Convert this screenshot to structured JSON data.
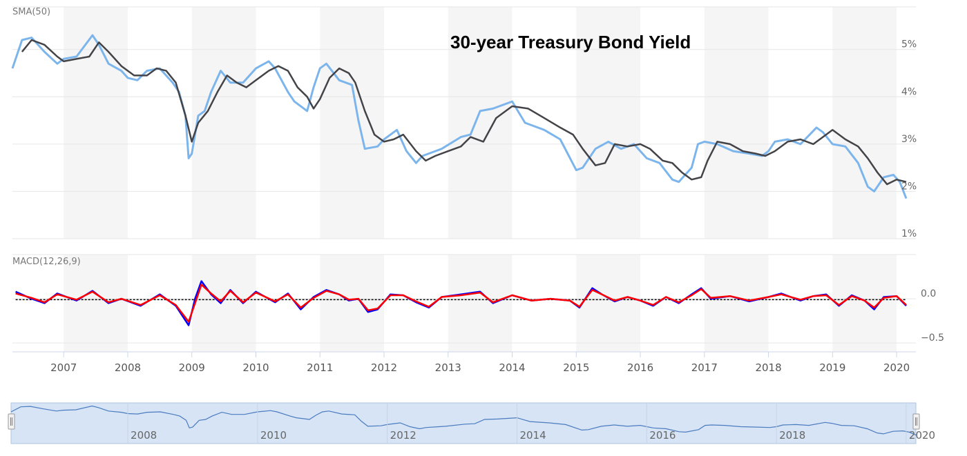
{
  "chart_data": {
    "title": "30-year Treasury Bond Yield",
    "type": "line",
    "price_panel": {
      "label": "SMA(50)",
      "y_ticks": [
        "5%",
        "4%",
        "3%",
        "2%",
        "1%"
      ],
      "y_tick_values": [
        5,
        4,
        3,
        2,
        1
      ],
      "ylim": [
        1,
        5.9
      ],
      "series": [
        {
          "role": "yield",
          "color": "#7cb5ec",
          "x": [
            2006.2,
            2006.35,
            2006.5,
            2006.7,
            2006.9,
            2007.0,
            2007.2,
            2007.45,
            2007.55,
            2007.7,
            2007.9,
            2008.0,
            2008.15,
            2008.3,
            2008.5,
            2008.7,
            2008.8,
            2008.9,
            2008.95,
            2009.0,
            2009.1,
            2009.2,
            2009.3,
            2009.45,
            2009.6,
            2009.8,
            2010.0,
            2010.2,
            2010.3,
            2010.5,
            2010.6,
            2010.8,
            2010.9,
            2011.0,
            2011.1,
            2011.3,
            2011.5,
            2011.6,
            2011.7,
            2011.9,
            2012.0,
            2012.2,
            2012.35,
            2012.5,
            2012.6,
            2012.8,
            2012.9,
            2013.2,
            2013.35,
            2013.5,
            2013.7,
            2014.0,
            2014.2,
            2014.5,
            2014.75,
            2015.0,
            2015.1,
            2015.3,
            2015.5,
            2015.7,
            2015.9,
            2016.1,
            2016.3,
            2016.5,
            2016.6,
            2016.8,
            2016.9,
            2017.0,
            2017.2,
            2017.45,
            2017.7,
            2017.9,
            2018.0,
            2018.1,
            2018.3,
            2018.5,
            2018.75,
            2018.85,
            2019.0,
            2019.2,
            2019.4,
            2019.55,
            2019.65,
            2019.8,
            2019.95,
            2020.05,
            2020.15
          ],
          "y": [
            4.6,
            5.2,
            5.25,
            4.95,
            4.7,
            4.8,
            4.85,
            5.3,
            5.1,
            4.7,
            4.55,
            4.4,
            4.35,
            4.55,
            4.6,
            4.3,
            4.1,
            3.6,
            2.7,
            2.8,
            3.6,
            3.7,
            4.1,
            4.55,
            4.3,
            4.3,
            4.6,
            4.75,
            4.6,
            4.1,
            3.9,
            3.7,
            4.2,
            4.6,
            4.7,
            4.35,
            4.25,
            3.5,
            2.9,
            2.95,
            3.1,
            3.3,
            2.85,
            2.6,
            2.75,
            2.85,
            2.9,
            3.15,
            3.2,
            3.7,
            3.75,
            3.9,
            3.45,
            3.3,
            3.1,
            2.45,
            2.5,
            2.9,
            3.05,
            2.9,
            3.0,
            2.7,
            2.6,
            2.25,
            2.2,
            2.5,
            3.0,
            3.05,
            3.0,
            2.85,
            2.8,
            2.75,
            2.85,
            3.05,
            3.1,
            3.0,
            3.35,
            3.25,
            3.0,
            2.95,
            2.6,
            2.1,
            2.0,
            2.3,
            2.35,
            2.2,
            1.85
          ]
        },
        {
          "role": "SMA(50)",
          "color": "#434348",
          "x": [
            2006.35,
            2006.5,
            2006.7,
            2006.9,
            2007.0,
            2007.2,
            2007.4,
            2007.55,
            2007.7,
            2007.9,
            2008.1,
            2008.3,
            2008.45,
            2008.6,
            2008.75,
            2008.9,
            2009.0,
            2009.1,
            2009.25,
            2009.4,
            2009.55,
            2009.7,
            2009.85,
            2010.0,
            2010.2,
            2010.35,
            2010.5,
            2010.65,
            2010.8,
            2010.9,
            2011.0,
            2011.15,
            2011.3,
            2011.45,
            2011.55,
            2011.7,
            2011.85,
            2012.0,
            2012.15,
            2012.3,
            2012.5,
            2012.65,
            2012.8,
            2013.0,
            2013.2,
            2013.35,
            2013.55,
            2013.75,
            2014.0,
            2014.25,
            2014.5,
            2014.75,
            2014.95,
            2015.1,
            2015.3,
            2015.45,
            2015.6,
            2015.8,
            2016.0,
            2016.15,
            2016.35,
            2016.5,
            2016.65,
            2016.8,
            2016.95,
            2017.05,
            2017.2,
            2017.4,
            2017.6,
            2017.8,
            2017.95,
            2018.1,
            2018.3,
            2018.5,
            2018.7,
            2018.85,
            2019.0,
            2019.2,
            2019.4,
            2019.55,
            2019.7,
            2019.85,
            2020.0,
            2020.15
          ],
          "y": [
            4.95,
            5.2,
            5.1,
            4.85,
            4.75,
            4.8,
            4.85,
            5.15,
            4.95,
            4.65,
            4.45,
            4.45,
            4.6,
            4.55,
            4.3,
            3.6,
            3.05,
            3.45,
            3.7,
            4.1,
            4.45,
            4.3,
            4.2,
            4.35,
            4.55,
            4.65,
            4.55,
            4.2,
            4.0,
            3.75,
            3.95,
            4.4,
            4.6,
            4.5,
            4.3,
            3.7,
            3.2,
            3.05,
            3.1,
            3.2,
            2.85,
            2.65,
            2.75,
            2.85,
            2.95,
            3.15,
            3.05,
            3.55,
            3.8,
            3.75,
            3.55,
            3.35,
            3.2,
            2.9,
            2.55,
            2.6,
            3.0,
            2.95,
            3.0,
            2.9,
            2.65,
            2.6,
            2.4,
            2.25,
            2.3,
            2.65,
            3.05,
            3.0,
            2.85,
            2.8,
            2.75,
            2.85,
            3.05,
            3.1,
            3.0,
            3.15,
            3.3,
            3.1,
            2.95,
            2.7,
            2.4,
            2.15,
            2.25,
            2.2
          ]
        }
      ]
    },
    "macd_panel": {
      "label": "MACD(12,26,9)",
      "y_ticks": [
        "0.0",
        "−0.5"
      ],
      "y_tick_values": [
        0.0,
        -0.5
      ],
      "ylim": [
        -0.6,
        0.5
      ],
      "series": [
        {
          "role": "MACD",
          "color": "#0000ff",
          "x": [
            2006.25,
            2006.5,
            2006.7,
            2006.9,
            2007.2,
            2007.45,
            2007.7,
            2007.9,
            2008.2,
            2008.5,
            2008.75,
            2008.95,
            2009.05,
            2009.15,
            2009.3,
            2009.45,
            2009.6,
            2009.8,
            2010.0,
            2010.3,
            2010.5,
            2010.7,
            2010.9,
            2011.1,
            2011.3,
            2011.45,
            2011.6,
            2011.75,
            2011.9,
            2012.1,
            2012.3,
            2012.5,
            2012.7,
            2012.9,
            2013.2,
            2013.5,
            2013.7,
            2014.0,
            2014.3,
            2014.6,
            2014.9,
            2015.05,
            2015.25,
            2015.4,
            2015.6,
            2015.8,
            2016.0,
            2016.2,
            2016.4,
            2016.6,
            2016.8,
            2016.95,
            2017.1,
            2017.4,
            2017.7,
            2018.0,
            2018.2,
            2018.5,
            2018.7,
            2018.9,
            2019.1,
            2019.3,
            2019.5,
            2019.65,
            2019.8,
            2020.0,
            2020.15
          ],
          "y": [
            0.08,
            0.0,
            -0.05,
            0.06,
            -0.02,
            0.09,
            -0.05,
            0.0,
            -0.08,
            0.05,
            -0.08,
            -0.3,
            0.0,
            0.2,
            0.05,
            -0.05,
            0.1,
            -0.05,
            0.08,
            -0.04,
            0.06,
            -0.12,
            0.02,
            0.1,
            0.05,
            -0.02,
            0.0,
            -0.15,
            -0.12,
            0.05,
            0.04,
            -0.04,
            -0.1,
            0.02,
            0.05,
            0.08,
            -0.05,
            0.04,
            -0.02,
            0.0,
            -0.02,
            -0.1,
            0.12,
            0.05,
            -0.03,
            0.02,
            -0.02,
            -0.08,
            0.02,
            -0.05,
            0.05,
            0.12,
            0.0,
            0.03,
            -0.03,
            0.02,
            0.06,
            -0.02,
            0.03,
            0.05,
            -0.08,
            0.04,
            -0.02,
            -0.12,
            0.02,
            0.03,
            -0.08
          ]
        },
        {
          "role": "Signal",
          "color": "#ff0000",
          "x": [
            2006.25,
            2006.5,
            2006.7,
            2006.9,
            2007.2,
            2007.45,
            2007.7,
            2007.9,
            2008.2,
            2008.5,
            2008.75,
            2008.95,
            2009.05,
            2009.15,
            2009.3,
            2009.45,
            2009.6,
            2009.8,
            2010.0,
            2010.3,
            2010.5,
            2010.7,
            2010.9,
            2011.1,
            2011.3,
            2011.45,
            2011.6,
            2011.75,
            2011.9,
            2012.1,
            2012.3,
            2012.5,
            2012.7,
            2012.9,
            2013.2,
            2013.5,
            2013.7,
            2014.0,
            2014.3,
            2014.6,
            2014.9,
            2015.05,
            2015.25,
            2015.4,
            2015.6,
            2015.8,
            2016.0,
            2016.2,
            2016.4,
            2016.6,
            2016.8,
            2016.95,
            2017.1,
            2017.4,
            2017.7,
            2018.0,
            2018.2,
            2018.5,
            2018.7,
            2018.9,
            2019.1,
            2019.3,
            2019.5,
            2019.65,
            2019.8,
            2020.0,
            2020.15
          ],
          "y": [
            0.06,
            0.01,
            -0.04,
            0.05,
            -0.01,
            0.08,
            -0.04,
            0.0,
            -0.07,
            0.04,
            -0.07,
            -0.26,
            -0.05,
            0.16,
            0.06,
            -0.03,
            0.09,
            -0.04,
            0.07,
            -0.03,
            0.05,
            -0.1,
            0.01,
            0.09,
            0.05,
            -0.01,
            0.0,
            -0.13,
            -0.11,
            0.04,
            0.04,
            -0.03,
            -0.09,
            0.02,
            0.04,
            0.07,
            -0.04,
            0.04,
            -0.02,
            0.0,
            -0.02,
            -0.09,
            0.1,
            0.05,
            -0.02,
            0.02,
            -0.02,
            -0.07,
            0.02,
            -0.04,
            0.04,
            0.11,
            0.01,
            0.03,
            -0.02,
            0.02,
            0.05,
            -0.01,
            0.03,
            0.04,
            -0.07,
            0.03,
            -0.02,
            -0.1,
            0.01,
            0.03,
            -0.07
          ]
        }
      ]
    },
    "x_ticks": [
      "2007",
      "2008",
      "2009",
      "2010",
      "2011",
      "2012",
      "2013",
      "2014",
      "2015",
      "2016",
      "2017",
      "2018",
      "2019",
      "2020"
    ],
    "x_tick_values": [
      2007,
      2008,
      2009,
      2010,
      2011,
      2012,
      2013,
      2014,
      2015,
      2016,
      2017,
      2018,
      2019,
      2020
    ],
    "xlim": [
      2006.2,
      2020.15
    ],
    "navigator": {
      "ticks": [
        "2008",
        "2010",
        "2012",
        "2014",
        "2016",
        "2018",
        "2020"
      ],
      "tick_values": [
        2008,
        2010,
        2012,
        2014,
        2016,
        2018,
        2020
      ]
    },
    "grid": true,
    "colors": {
      "band": "#f5f5f5",
      "grid": "#e6e6e6",
      "navigator_fill": "#d6e4f5",
      "navigator_line": "#4a7bbf"
    }
  }
}
